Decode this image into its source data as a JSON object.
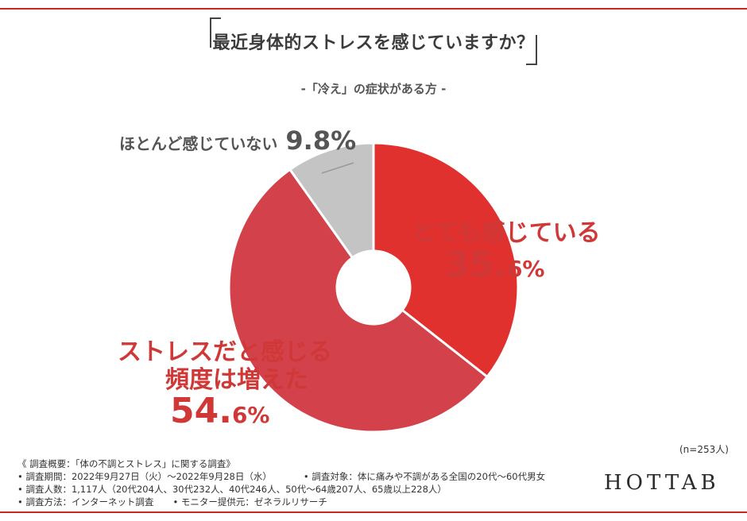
{
  "title": "最近身体的ストレスを感じていますか？",
  "subtitle": "-「冷え」の症状がある方 -",
  "chart_data": {
    "type": "pie",
    "donut": true,
    "slices": [
      {
        "label": "とても感じている",
        "value": 35.6,
        "pct_main": "35.",
        "pct_unit": "6%",
        "color": "#e0312f"
      },
      {
        "label_lines": [
          "ストレスだと感じる",
          "頻度は増えた"
        ],
        "value": 54.6,
        "pct_main": "54.",
        "pct_unit": "6%",
        "color": "#d3414a"
      },
      {
        "label": "ほとんど感じていない",
        "value": 9.8,
        "pct_text": "9.8%",
        "color": "#c4c4c4"
      }
    ]
  },
  "n_label": "(n=253人)",
  "logo": "HOTTAB",
  "footnotes": {
    "summary": "《 調査概要：「体の不調とストレス」に関する調査》",
    "period": "• 調査期間：2022年9月27日（火）～2022年9月28日（水）",
    "target": "• 調査対象：体に痛みや不調がある全国の20代～60代男女",
    "count": "• 調査人数：1,117人（20代204人、30代232人、40代246人、50代～64歳207人、65歳以上228人）",
    "method": "• 調査方法：インターネット調査",
    "provider": "• モニター提供元：ゼネラルリサーチ"
  }
}
